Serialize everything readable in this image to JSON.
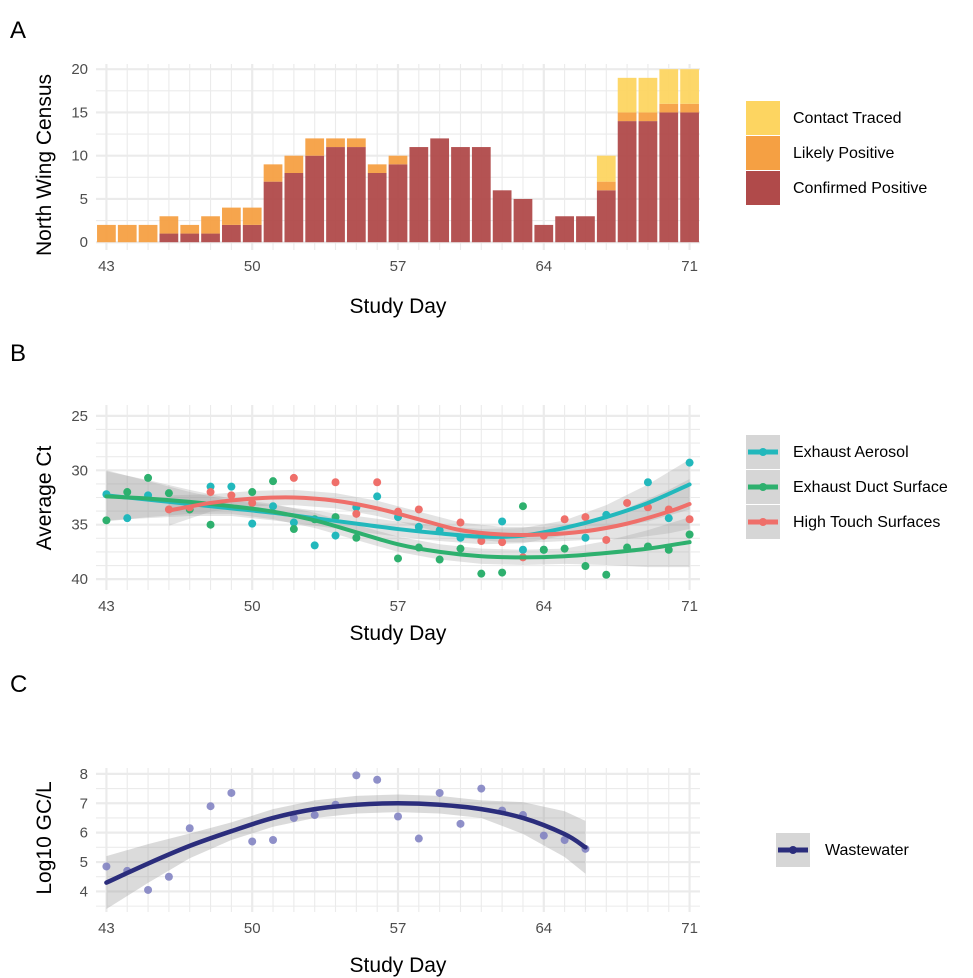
{
  "chart_data": [
    {
      "panel": "A",
      "type": "bar",
      "stacked": true,
      "xlabel": "Study Day",
      "ylabel": "North Wing Census",
      "xlim": [
        42.5,
        71.5
      ],
      "ylim": [
        0,
        20
      ],
      "x_ticks": [
        43,
        50,
        57,
        64,
        71
      ],
      "y_ticks": [
        0,
        5,
        10,
        15,
        20
      ],
      "grid": true,
      "legend_position": "right",
      "x": [
        43,
        44,
        45,
        46,
        47,
        48,
        49,
        50,
        51,
        52,
        53,
        54,
        55,
        56,
        57,
        58,
        59,
        60,
        61,
        62,
        63,
        64,
        65,
        66,
        67,
        68,
        69,
        70,
        71
      ],
      "series": [
        {
          "name": "Confirmed Positive",
          "color": "#b04a4a",
          "values": [
            0,
            0,
            0,
            1,
            1,
            1,
            2,
            2,
            7,
            8,
            10,
            11,
            11,
            8,
            9,
            11,
            12,
            11,
            11,
            6,
            5,
            2,
            3,
            3,
            6,
            14,
            14,
            15,
            15
          ]
        },
        {
          "name": "Likely Positive",
          "color": "#f5a043",
          "values": [
            2,
            2,
            2,
            2,
            1,
            2,
            2,
            2,
            2,
            2,
            2,
            1,
            1,
            1,
            1,
            0,
            0,
            0,
            0,
            0,
            0,
            0,
            0,
            0,
            1,
            1,
            1,
            1,
            1
          ]
        },
        {
          "name": "Contact Traced",
          "color": "#fdd561",
          "values": [
            0,
            0,
            0,
            0,
            0,
            0,
            0,
            0,
            0,
            0,
            0,
            0,
            0,
            0,
            0,
            0,
            0,
            0,
            0,
            0,
            0,
            0,
            0,
            0,
            3,
            4,
            4,
            4,
            4
          ]
        }
      ]
    },
    {
      "panel": "B",
      "type": "scatter",
      "smooth": true,
      "xlabel": "Study Day",
      "ylabel": "Average Ct",
      "y_reversed": true,
      "xlim": [
        42.5,
        71.5
      ],
      "ylim": [
        24,
        41
      ],
      "x_ticks": [
        43,
        50,
        57,
        64,
        71
      ],
      "y_ticks": [
        25,
        30,
        35,
        40
      ],
      "grid": true,
      "legend_position": "right",
      "series": [
        {
          "name": "Exhaust Aerosol",
          "color": "#22b8bc",
          "points": [
            [
              43,
              32.2
            ],
            [
              44,
              34.4
            ],
            [
              45,
              32.3
            ],
            [
              48,
              31.5
            ],
            [
              49,
              31.5
            ],
            [
              50,
              34.9
            ],
            [
              51,
              33.3
            ],
            [
              52,
              34.8
            ],
            [
              53,
              36.9
            ],
            [
              54,
              36.0
            ],
            [
              55,
              33.4
            ],
            [
              56,
              32.4
            ],
            [
              57,
              34.3
            ],
            [
              58,
              35.2
            ],
            [
              59,
              35.5
            ],
            [
              60,
              36.2
            ],
            [
              62,
              34.7
            ],
            [
              63,
              37.3
            ],
            [
              64,
              37.3
            ],
            [
              66,
              36.2
            ],
            [
              67,
              34.1
            ],
            [
              69,
              31.1
            ],
            [
              70,
              34.4
            ],
            [
              71,
              29.3
            ]
          ],
          "smooth": [
            [
              43,
              32.3
            ],
            [
              45,
              32.7
            ],
            [
              47,
              33.1
            ],
            [
              49,
              33.5
            ],
            [
              51,
              33.9
            ],
            [
              53,
              34.4
            ],
            [
              55,
              34.9
            ],
            [
              57,
              35.4
            ],
            [
              59,
              35.8
            ],
            [
              61,
              36.1
            ],
            [
              63,
              36.0
            ],
            [
              65,
              35.3
            ],
            [
              67,
              34.3
            ],
            [
              69,
              33.0
            ],
            [
              71,
              31.3
            ]
          ]
        },
        {
          "name": "Exhaust Duct Surface",
          "color": "#2eb06e",
          "points": [
            [
              43,
              34.6
            ],
            [
              44,
              32.0
            ],
            [
              45,
              30.7
            ],
            [
              46,
              32.1
            ],
            [
              47,
              33.6
            ],
            [
              48,
              35.0
            ],
            [
              50,
              32.0
            ],
            [
              51,
              31.0
            ],
            [
              52,
              35.4
            ],
            [
              53,
              34.5
            ],
            [
              54,
              34.3
            ],
            [
              55,
              36.2
            ],
            [
              57,
              38.1
            ],
            [
              58,
              37.1
            ],
            [
              59,
              38.2
            ],
            [
              60,
              37.2
            ],
            [
              61,
              39.5
            ],
            [
              62,
              39.4
            ],
            [
              63,
              33.3
            ],
            [
              64,
              37.3
            ],
            [
              65,
              37.2
            ],
            [
              66,
              38.8
            ],
            [
              67,
              39.6
            ],
            [
              68,
              37.1
            ],
            [
              69,
              37.0
            ],
            [
              70,
              37.3
            ],
            [
              71,
              35.9
            ]
          ],
          "smooth": [
            [
              43,
              32.4
            ],
            [
              45,
              32.6
            ],
            [
              47,
              32.9
            ],
            [
              49,
              33.3
            ],
            [
              51,
              33.8
            ],
            [
              53,
              34.6
            ],
            [
              55,
              35.7
            ],
            [
              57,
              36.8
            ],
            [
              59,
              37.5
            ],
            [
              61,
              37.9
            ],
            [
              63,
              38.0
            ],
            [
              65,
              37.9
            ],
            [
              67,
              37.6
            ],
            [
              69,
              37.2
            ],
            [
              71,
              36.6
            ]
          ]
        },
        {
          "name": "High Touch Surfaces",
          "color": "#ef6f6a",
          "points": [
            [
              46,
              33.6
            ],
            [
              47,
              33.4
            ],
            [
              48,
              32.0
            ],
            [
              49,
              32.3
            ],
            [
              50,
              33.0
            ],
            [
              52,
              30.7
            ],
            [
              54,
              31.1
            ],
            [
              55,
              34.0
            ],
            [
              56,
              31.1
            ],
            [
              57,
              33.8
            ],
            [
              58,
              33.6
            ],
            [
              60,
              34.8
            ],
            [
              61,
              36.5
            ],
            [
              62,
              36.6
            ],
            [
              63,
              38.0
            ],
            [
              64,
              36.0
            ],
            [
              65,
              34.5
            ],
            [
              66,
              34.3
            ],
            [
              67,
              36.4
            ],
            [
              68,
              33.0
            ],
            [
              69,
              33.4
            ],
            [
              70,
              33.6
            ],
            [
              71,
              34.5
            ]
          ],
          "smooth": [
            [
              46,
              33.7
            ],
            [
              48,
              33.0
            ],
            [
              50,
              32.6
            ],
            [
              52,
              32.5
            ],
            [
              54,
              32.8
            ],
            [
              56,
              33.5
            ],
            [
              58,
              34.5
            ],
            [
              60,
              35.5
            ],
            [
              62,
              35.9
            ],
            [
              64,
              35.9
            ],
            [
              66,
              35.6
            ],
            [
              68,
              34.9
            ],
            [
              70,
              33.8
            ],
            [
              71,
              33.1
            ]
          ]
        }
      ]
    },
    {
      "panel": "C",
      "type": "scatter",
      "smooth": true,
      "xlabel": "Study Day",
      "ylabel": "Log10 GC/L",
      "xlim": [
        42.5,
        71.5
      ],
      "ylim": [
        3.3,
        8.2
      ],
      "x_ticks": [
        43,
        50,
        57,
        64,
        71
      ],
      "y_ticks": [
        4,
        5,
        6,
        7,
        8
      ],
      "grid": true,
      "legend_position": "right",
      "series": [
        {
          "name": "Wastewater",
          "color": "#2b2d7c",
          "points": [
            [
              43,
              4.85
            ],
            [
              44,
              4.7
            ],
            [
              45,
              4.05
            ],
            [
              46,
              4.5
            ],
            [
              47,
              6.15
            ],
            [
              48,
              6.9
            ],
            [
              49,
              7.35
            ],
            [
              50,
              5.7
            ],
            [
              51,
              5.75
            ],
            [
              52,
              6.5
            ],
            [
              53,
              6.6
            ],
            [
              54,
              6.95
            ],
            [
              55,
              7.95
            ],
            [
              56,
              7.8
            ],
            [
              57,
              6.55
            ],
            [
              58,
              5.8
            ],
            [
              59,
              7.35
            ],
            [
              60,
              6.3
            ],
            [
              61,
              7.5
            ],
            [
              62,
              6.75
            ],
            [
              63,
              6.6
            ],
            [
              64,
              5.9
            ],
            [
              65,
              5.75
            ],
            [
              66,
              5.45
            ]
          ],
          "smooth": [
            [
              43,
              4.3
            ],
            [
              45,
              4.95
            ],
            [
              47,
              5.55
            ],
            [
              49,
              6.05
            ],
            [
              51,
              6.5
            ],
            [
              53,
              6.8
            ],
            [
              55,
              6.95
            ],
            [
              57,
              7.0
            ],
            [
              59,
              6.95
            ],
            [
              61,
              6.8
            ],
            [
              63,
              6.5
            ],
            [
              65,
              5.95
            ],
            [
              66,
              5.5
            ]
          ]
        }
      ]
    }
  ],
  "panel_labels": [
    "A",
    "B",
    "C"
  ],
  "colors": {
    "band": "#999999",
    "grid": "#ebebeb"
  }
}
